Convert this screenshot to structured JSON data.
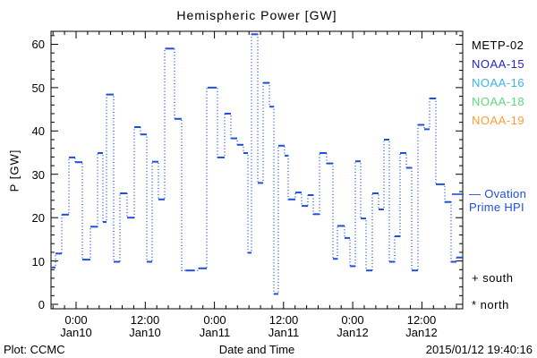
{
  "title": "Hemispheric Power [GW]",
  "ylabel": "P [GW]",
  "xlabel": "Date and Time",
  "footer": {
    "left": "Plot: CCMC",
    "right": "2015/01/12 19:40:16"
  },
  "legend": {
    "satellites": [
      {
        "label": "METP-02",
        "color": "#000000"
      },
      {
        "label": "NOAA-15",
        "color": "#2323cf"
      },
      {
        "label": "NOAA-16",
        "color": "#35b6ea"
      },
      {
        "label": "NOAA-18",
        "color": "#5cd97f"
      },
      {
        "label": "NOAA-19",
        "color": "#ff9d33"
      }
    ],
    "line_label_1": "— Ovation",
    "line_label_2": "Prime HPI",
    "south_label": "+ south",
    "north_label": "* north"
  },
  "chart_data": {
    "type": "line",
    "style": "dotted-steps-mid with solid dash at each sample",
    "title": "Hemispheric Power [GW]",
    "xlabel": "Date and Time",
    "ylabel": "P [GW]",
    "line_color": "#1e4fdd",
    "ylim": [
      0,
      63
    ],
    "y_major_ticks": [
      0,
      10,
      20,
      30,
      40,
      50,
      60
    ],
    "y_minor_step": 2,
    "x_range_hours_from_jan10_0000": [
      -4.35,
      67.08
    ],
    "x_minor_step_hours": 2,
    "x_tick_labels": [
      {
        "hour": 0,
        "time": "0:00",
        "date": "Jan10"
      },
      {
        "hour": 12,
        "time": "12:00",
        "date": "Jan10"
      },
      {
        "hour": 24,
        "time": "0:00",
        "date": "Jan11"
      },
      {
        "hour": 36,
        "time": "12:00",
        "date": "Jan11"
      },
      {
        "hour": 48,
        "time": "0:00",
        "date": "Jan12"
      },
      {
        "hour": 60,
        "time": "12:00",
        "date": "Jan12"
      }
    ],
    "grid": false,
    "legend_position": "right-outside",
    "series_name": "Ovation Prime HPI",
    "x_hours_from_jan10_0000": [
      -4.35,
      -3.57,
      -2.48,
      -1.24,
      -0.16,
      1.09,
      2.48,
      3.73,
      4.66,
      5.28,
      6.52,
      7.61,
      8.85,
      10.09,
      11.18,
      12.27,
      13.2,
      14.29,
      15.37,
      17.08,
      18.32,
      21.27,
      22.67,
      24.53,
      25.78,
      26.86,
      27.95,
      29.04,
      29.81,
      30.43,
      31.52,
      32.45,
      33.54,
      34.32,
      35.09,
      36.18,
      36.8,
      38.04,
      39.13,
      40.22,
      41.15,
      42.24,
      43.48,
      44.57,
      45.34,
      46.58,
      47.52,
      48.45,
      49.38,
      50.31,
      51.4,
      52.48,
      53.42,
      54.35,
      55.28,
      56.21,
      57.3,
      58.23,
      59.32,
      60.4,
      61.34,
      62.42,
      63.98,
      65.06,
      66.0
    ],
    "values_gw": [
      8.5,
      11.7,
      20.7,
      33.9,
      32.8,
      10.3,
      17.9,
      34.9,
      19.0,
      48.4,
      9.8,
      25.6,
      20.0,
      40.9,
      39.2,
      9.8,
      32.9,
      24.2,
      59.0,
      42.8,
      7.8,
      8.3,
      50.0,
      33.9,
      44.0,
      38.3,
      36.8,
      34.9,
      11.9,
      62.3,
      28.0,
      51.1,
      45.6,
      2.4,
      36.6,
      34.3,
      24.2,
      25.8,
      22.7,
      25.2,
      20.8,
      34.9,
      32.5,
      10.5,
      18.1,
      15.3,
      8.8,
      33.0,
      19.8,
      7.8,
      25.6,
      21.9,
      38.0,
      9.8,
      15.7,
      34.9,
      31.5,
      7.8,
      41.4,
      40.4,
      47.5,
      27.7,
      23.6,
      9.8,
      10.8
    ],
    "x_end_hour": 67.08
  }
}
